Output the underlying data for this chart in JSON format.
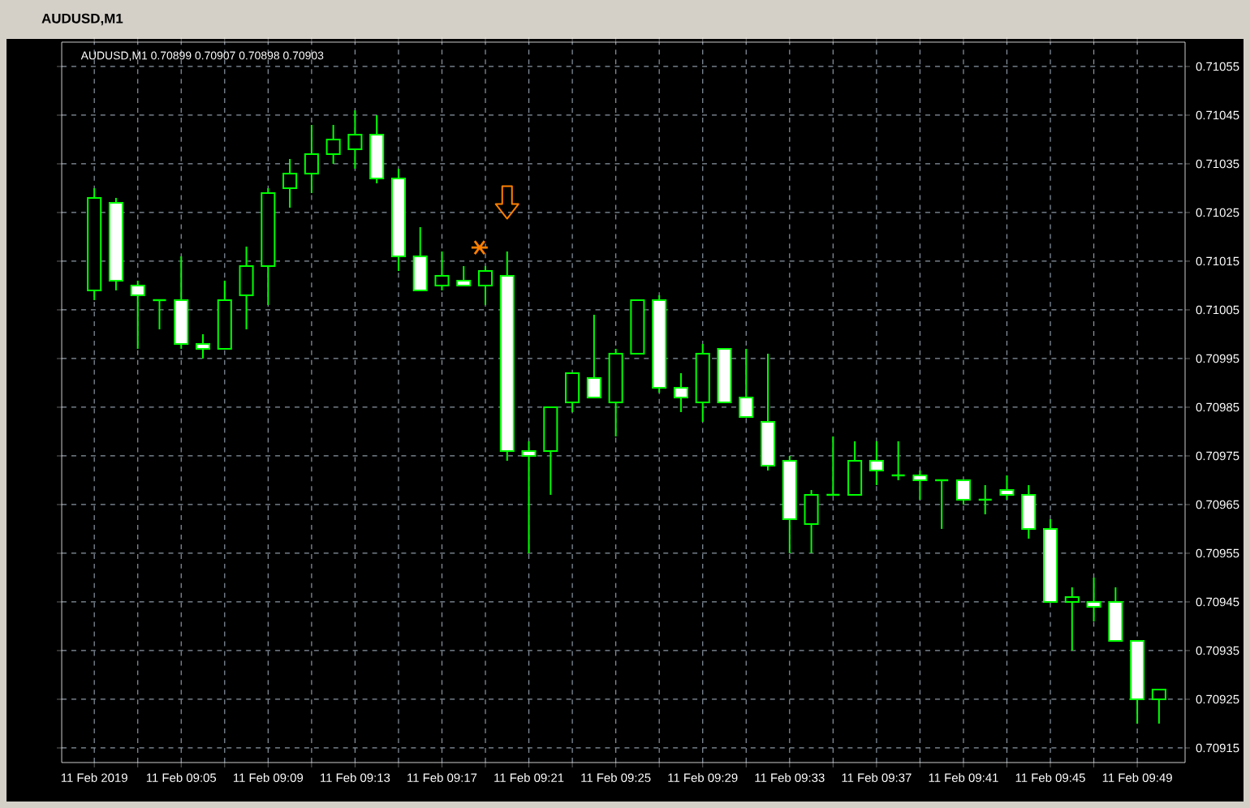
{
  "chart_data": {
    "type": "candlestick",
    "title": "AUDUSD,M1",
    "subtitle": "AUDUSD,M1 0.70899 0.70907 0.70898 0.70903",
    "categories": [
      "11 Feb 2019",
      null,
      null,
      null,
      "11 Feb 09:05",
      null,
      null,
      null,
      "11 Feb 09:09",
      null,
      null,
      null,
      "11 Feb 09:13",
      null,
      null,
      null,
      "11 Feb 09:17",
      null,
      null,
      null,
      "11 Feb 09:21",
      null,
      null,
      null,
      "11 Feb 09:25",
      null,
      null,
      null,
      "11 Feb 09:29",
      null,
      null,
      null,
      "11 Feb 09:33",
      null,
      null,
      null,
      "11 Feb 09:37",
      null,
      null,
      null,
      "11 Feb 09:41",
      null,
      null,
      null,
      "11 Feb 09:45",
      null,
      null,
      null,
      "11 Feb 09:49",
      null
    ],
    "ohlc": [
      [
        0.71009,
        0.7103,
        0.71007,
        0.71028
      ],
      [
        0.71027,
        0.71028,
        0.71009,
        0.71011
      ],
      [
        0.7101,
        0.71011,
        0.70997,
        0.71008
      ],
      [
        0.71007,
        0.71007,
        0.71001,
        0.71007
      ],
      [
        0.71007,
        0.71016,
        0.70997,
        0.70998
      ],
      [
        0.70998,
        0.71,
        0.70995,
        0.70997
      ],
      [
        0.70997,
        0.71011,
        0.70997,
        0.71007
      ],
      [
        0.71008,
        0.71018,
        0.71001,
        0.71014
      ],
      [
        0.71014,
        0.7103,
        0.71006,
        0.71029
      ],
      [
        0.7103,
        0.71036,
        0.71026,
        0.71033
      ],
      [
        0.71033,
        0.71043,
        0.71029,
        0.71037
      ],
      [
        0.71037,
        0.71043,
        0.71035,
        0.7104
      ],
      [
        0.71038,
        0.71046,
        0.71034,
        0.71041
      ],
      [
        0.71041,
        0.71045,
        0.71031,
        0.71032
      ],
      [
        0.71032,
        0.71034,
        0.71013,
        0.71016
      ],
      [
        0.71016,
        0.71022,
        0.71009,
        0.71009
      ],
      [
        0.7101,
        0.71017,
        0.71009,
        0.71012
      ],
      [
        0.71011,
        0.71014,
        0.7101,
        0.7101
      ],
      [
        0.7101,
        0.71014,
        0.71006,
        0.71013
      ],
      [
        0.71012,
        0.71017,
        0.70974,
        0.70976
      ],
      [
        0.70976,
        0.70978,
        0.70955,
        0.70975
      ],
      [
        0.70976,
        0.70985,
        0.70967,
        0.70985
      ],
      [
        0.70986,
        0.70992,
        0.70984,
        0.70992
      ],
      [
        0.70991,
        0.71004,
        0.70987,
        0.70987
      ],
      [
        0.70986,
        0.70997,
        0.70979,
        0.70996
      ],
      [
        0.70996,
        0.71007,
        0.70996,
        0.71007
      ],
      [
        0.71007,
        0.71008,
        0.70988,
        0.70989
      ],
      [
        0.70989,
        0.70992,
        0.70984,
        0.70987
      ],
      [
        0.70986,
        0.70998,
        0.70982,
        0.70996
      ],
      [
        0.70997,
        0.70997,
        0.70986,
        0.70986
      ],
      [
        0.70987,
        0.70997,
        0.70983,
        0.70983
      ],
      [
        0.70982,
        0.70996,
        0.70972,
        0.70973
      ],
      [
        0.70974,
        0.70975,
        0.70955,
        0.70962
      ],
      [
        0.70961,
        0.70968,
        0.70955,
        0.70967
      ],
      [
        0.70967,
        0.70979,
        0.70967,
        0.70967
      ],
      [
        0.70967,
        0.70978,
        0.70967,
        0.70974
      ],
      [
        0.70974,
        0.70978,
        0.70969,
        0.70972
      ],
      [
        0.70971,
        0.70978,
        0.7097,
        0.70971
      ],
      [
        0.70971,
        0.70972,
        0.70966,
        0.7097
      ],
      [
        0.7097,
        0.7097,
        0.7096,
        0.7097
      ],
      [
        0.7097,
        0.7097,
        0.70965,
        0.70966
      ],
      [
        0.70966,
        0.70969,
        0.70963,
        0.70966
      ],
      [
        0.70968,
        0.70971,
        0.70966,
        0.70967
      ],
      [
        0.70967,
        0.70969,
        0.70958,
        0.7096
      ],
      [
        0.7096,
        0.70962,
        0.70945,
        0.70945
      ],
      [
        0.70945,
        0.70948,
        0.70935,
        0.70946
      ],
      [
        0.70945,
        0.7095,
        0.70941,
        0.70944
      ],
      [
        0.70945,
        0.70948,
        0.70937,
        0.70937
      ],
      [
        0.70937,
        0.70937,
        0.7092,
        0.70925
      ],
      [
        0.70925,
        0.70927,
        0.7092,
        0.70927
      ]
    ],
    "color": "#00ff00",
    "ylim": [
      0.70912,
      0.7106
    ],
    "yticks": [
      0.70915,
      0.70925,
      0.70935,
      0.70945,
      0.70955,
      0.70965,
      0.70975,
      0.70985,
      0.70995,
      0.71005,
      0.71015,
      0.71025,
      0.71035,
      0.71045,
      0.71055
    ],
    "grid": true
  }
}
